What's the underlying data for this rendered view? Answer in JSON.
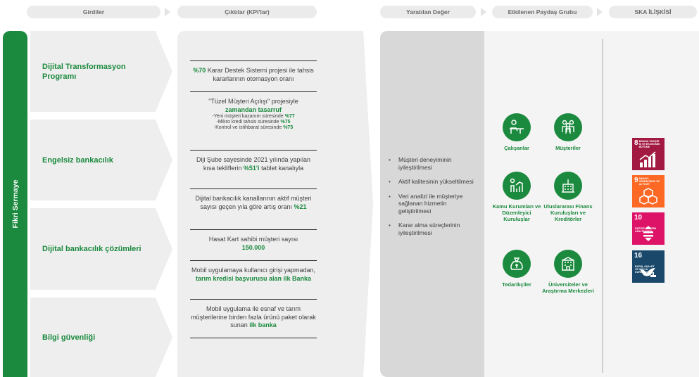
{
  "headers": {
    "inputs": "Girdiler",
    "outputs": "Çıktılar (KPI'lar)",
    "value": "Yaratılan Değer",
    "stakeholders": "Etkilenen Paydaş Grubu",
    "sdg": "SKA İLİŞKİSİ"
  },
  "capital": "Fikri Sermaye",
  "inputs": [
    "Dijital Transformasyon Programı",
    "Engelsiz bankacılık",
    "Dijital bankacılık çözümleri",
    "Bilgi güvenliği"
  ],
  "kpis": {
    "k1": {
      "b1": "%70",
      "t1": " Karar Destek Sistemi projesi ile tahsis kararlarının otomasyon oranı"
    },
    "k2": {
      "t1": "\"Tüzel Müşteri Açılışı\" projesiyle",
      "b1": "zamandan tasarruf",
      "s1": "-Yeni müşteri kazanım süresinde ",
      "s1b": "%77",
      "s2": "-Mikro kredi tahsis süresinde ",
      "s2b": "%75",
      "s3": "-Kontrol ve istihbarat süresinde ",
      "s3b": "%75"
    },
    "k3": {
      "t1": "Diji Şube sayesinde 2021 yılında yapılan kısa tekliflerin ",
      "b1": "%51'i",
      "t2": " tablet kanalıyla"
    },
    "k4": {
      "t1": "Dijital bankacılık kanallarının aktif müşteri sayısı geçen yıla göre artış oranı ",
      "b1": "%21"
    },
    "k5": {
      "t1": "Hasat Kart sahibi müşteri sayısı",
      "b1": "150.000"
    },
    "k6": {
      "t1": "Mobil uygulamaya kullanıcı girişi yapmadan, ",
      "b1": "tarım kredisi başvurusu alan ilk Banka"
    },
    "k7": {
      "t1": "Mobil uygulama ile esnaf ve tarım müşterilerine birden fazla ürünü paket olarak sunan ",
      "b1": "ilk banka"
    }
  },
  "value_items": [
    "Müşteri deneyiminin iyileştirilmesi",
    "Aktif kalitesinin yükseltilmesi",
    "Veri analizi ile müşteriye sağlanan hizmetin geliştirilmesi",
    "Karar alma süreçlerinin iyileştirilmesi"
  ],
  "stakeholders": [
    {
      "label": "Çalışanlar",
      "icon": "employee-desk-icon"
    },
    {
      "label": "Müşteriler",
      "icon": "customers-group-icon"
    },
    {
      "label": "Kamu Kurumları ve Düzenleyici Kuruluşlar",
      "icon": "public-chart-icon"
    },
    {
      "label": "Uluslararası Finans Kuruluşları ve Kreditörler",
      "icon": "bank-building-icon"
    },
    {
      "label": "Tedarikçiler",
      "icon": "money-bag-icon"
    },
    {
      "label": "Üniversiteler ve Araştırma Merkezleri",
      "icon": "university-icon"
    }
  ],
  "sdgs": [
    {
      "num": "8",
      "title": "İNSANA YAKIŞIR İŞ VE EKONOMİK BÜYÜME",
      "color": "#a21942",
      "icon": "growth-chart-icon"
    },
    {
      "num": "9",
      "title": "SANAYİ, YENİLİKÇİLİK VE ALTYAPI",
      "color": "#fd6925",
      "icon": "cubes-icon"
    },
    {
      "num": "10",
      "title": "EŞİTSİZLİKLERİN AZALTILMASI",
      "color": "#dd1367",
      "icon": "equality-icon"
    },
    {
      "num": "16",
      "title": "BARIŞ, ADALET VE GÜÇLÜ KURUMLAR",
      "color": "#19486a",
      "icon": "dove-gavel-icon"
    }
  ],
  "colors": {
    "accent": "#1b8a3e",
    "panel": "#eeeeee",
    "value_panel": "#d8d8d8"
  }
}
